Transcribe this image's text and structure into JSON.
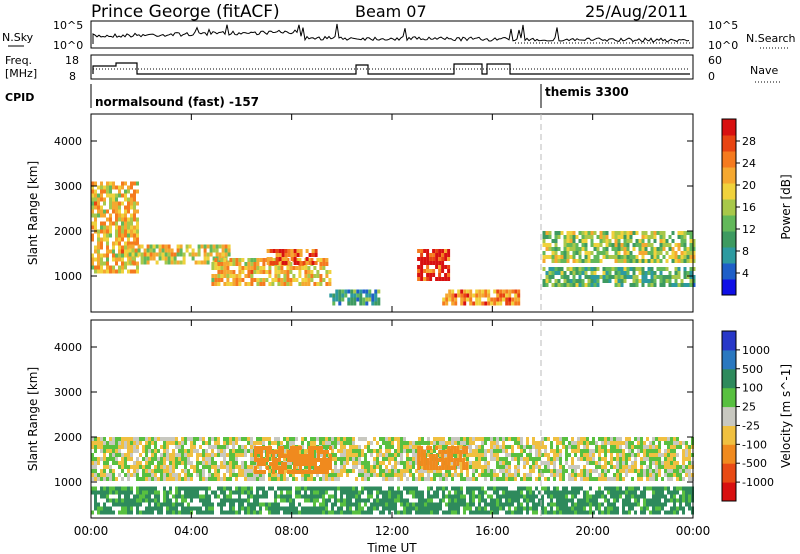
{
  "header": {
    "station": "Prince George (fitACF)",
    "beam": "Beam 07",
    "date": "25/Aug/2011"
  },
  "noise_panel": {
    "left_label": "N.Sky",
    "right_label": "N.Search",
    "left_ticks": [
      "10^5",
      "10^0"
    ],
    "right_ticks": [
      "10^5",
      "10^0"
    ]
  },
  "freq_panel": {
    "left_label_1": "Freq.",
    "left_label_2": "[MHz]",
    "left_ticks": [
      "18",
      "8"
    ],
    "right_label": "Nave",
    "right_ticks": [
      "60",
      "0"
    ]
  },
  "cpid_panel": {
    "label": "CPID",
    "modes": [
      {
        "name": "normalsound (fast) -157",
        "start_hour": 0
      },
      {
        "name": "themis 3300",
        "start_hour": 18
      }
    ]
  },
  "chart_data": [
    {
      "type": "heatmap",
      "name": "power",
      "ylabel": "Slant Range [km]",
      "ylim": [
        200,
        4600
      ],
      "yticks": [
        "4000",
        "3000",
        "2000",
        "1000"
      ],
      "xlim_hours": [
        0,
        24
      ],
      "colorbar": {
        "label": "Power [dB]",
        "ticks": [
          "28",
          "24",
          "20",
          "16",
          "12",
          "8",
          "4"
        ],
        "colors": [
          "#1010e6",
          "#1e5fc8",
          "#2c9aa0",
          "#3d9a60",
          "#62b85a",
          "#a8c84a",
          "#f0d23c",
          "#f5a830",
          "#f57a1e",
          "#e84412",
          "#d81010"
        ]
      },
      "echo_regions": [
        {
          "x": [
            0.0,
            1.8
          ],
          "y": [
            1100,
            3100
          ],
          "value_db": 20
        },
        {
          "x": [
            1.5,
            5.5
          ],
          "y": [
            1300,
            1700
          ],
          "value_db": 18
        },
        {
          "x": [
            4.8,
            9.5
          ],
          "y": [
            800,
            1400
          ],
          "value_db": 20
        },
        {
          "x": [
            7.0,
            9.0
          ],
          "y": [
            1300,
            1600
          ],
          "value_db": 26
        },
        {
          "x": [
            9.5,
            11.5
          ],
          "y": [
            400,
            700
          ],
          "value_db": 10
        },
        {
          "x": [
            13.0,
            14.2
          ],
          "y": [
            900,
            1600
          ],
          "value_db": 28
        },
        {
          "x": [
            14.0,
            17.0
          ],
          "y": [
            400,
            700
          ],
          "value_db": 24
        },
        {
          "x": [
            18.0,
            24.0
          ],
          "y": [
            1300,
            2000
          ],
          "value_db": 16
        },
        {
          "x": [
            18.0,
            24.0
          ],
          "y": [
            800,
            1200
          ],
          "value_db": 12
        }
      ]
    },
    {
      "type": "heatmap",
      "name": "velocity",
      "ylabel": "Slant Range [km]",
      "ylim": [
        200,
        4600
      ],
      "yticks": [
        "4000",
        "3000",
        "2000",
        "1000"
      ],
      "xlim_hours": [
        0,
        24
      ],
      "colorbar": {
        "label": "Velocity [m s^-1]",
        "ticks": [
          "1000",
          "500",
          "100",
          "25",
          "-25",
          "-100",
          "-500",
          "-1000"
        ],
        "colors": [
          "#2838c8",
          "#2a78c0",
          "#2e8a5c",
          "#58c040",
          "#c8c8c0",
          "#f0c040",
          "#f08a1e",
          "#e84a14",
          "#d81010"
        ]
      },
      "echo_regions": [
        {
          "x": [
            0.0,
            24.0
          ],
          "y": [
            1100,
            2000
          ],
          "value_ms": 0
        },
        {
          "x": [
            6.5,
            9.5
          ],
          "y": [
            1200,
            1800
          ],
          "value_ms": -300
        },
        {
          "x": [
            13.0,
            15.0
          ],
          "y": [
            1300,
            1800
          ],
          "value_ms": -300
        },
        {
          "x": [
            0.0,
            24.0
          ],
          "y": [
            300,
            900
          ],
          "value_ms": 150
        }
      ]
    }
  ],
  "time_axis": {
    "label": "Time UT",
    "ticks": [
      "00:00",
      "04:00",
      "08:00",
      "12:00",
      "16:00",
      "20:00",
      "00:00"
    ]
  }
}
